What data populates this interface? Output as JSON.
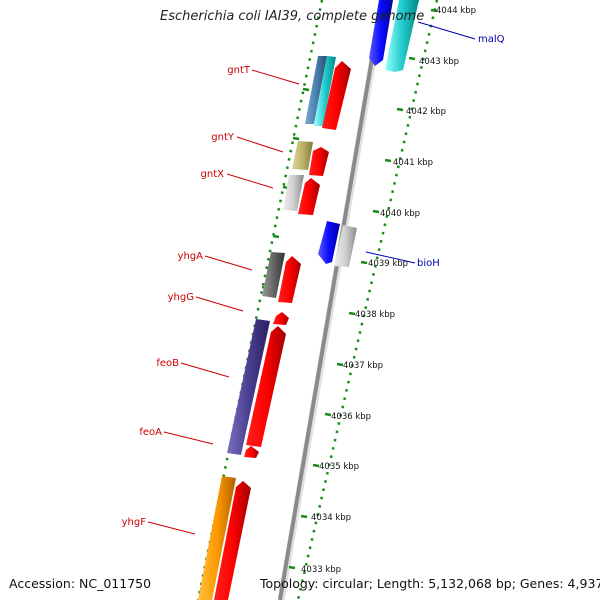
{
  "title": "Escherichia coli IAI39, complete genome",
  "footer": {
    "accession": "Accession: NC_011750",
    "summary": "Topology: circular; Length: 5,132,068 bp; Genes: 4,937"
  },
  "colors": {
    "backbone": "#8a8a8a",
    "dots": "#1a8a1a",
    "tick": "#1a8a1a",
    "gene_label": "#cc0000",
    "feature_label": "#0000b0"
  },
  "kbp_labels": [
    "4044 kbp",
    "4043 kbp",
    "4042 kbp",
    "4041 kbp",
    "4040 kbp",
    "4039 kbp",
    "4038 kbp",
    "4037 kbp",
    "4036 kbp",
    "4035 kbp",
    "4034 kbp",
    "4033 kbp"
  ],
  "gene_labels": [
    "gntT",
    "gntY",
    "gntX",
    "yhgA",
    "yhgG",
    "feoB",
    "feoA",
    "yhgF"
  ],
  "feature_labels": [
    "malQ",
    "bioH"
  ]
}
